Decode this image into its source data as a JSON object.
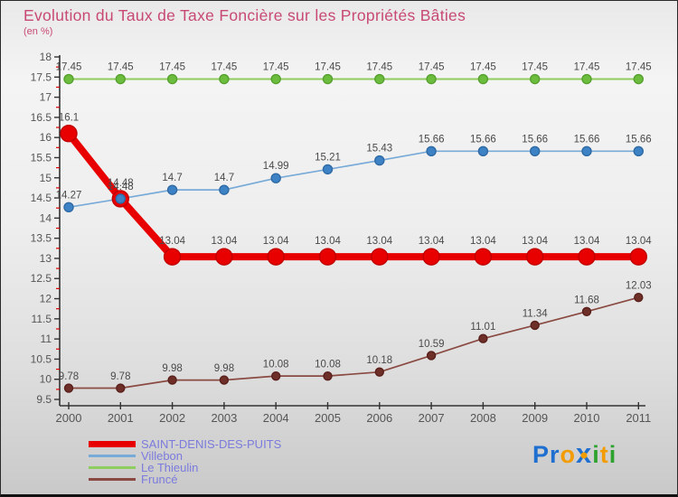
{
  "header": {
    "title": "Evolution du Taux de Taxe Foncière sur les Propriétés Bâties",
    "subtitle": "(en %)",
    "title_color": "#c84a72"
  },
  "chart_data": {
    "type": "line",
    "title": "Evolution du Taux de Taxe Foncière sur les Propriétés Bâties",
    "ylabel": "en %",
    "x": [
      2000,
      2001,
      2002,
      2003,
      2004,
      2005,
      2006,
      2007,
      2008,
      2009,
      2010,
      2011
    ],
    "series": [
      {
        "name": "SAINT-DENIS-DES-PUITS",
        "values": [
          16.1,
          14.48,
          13.04,
          13.04,
          13.04,
          13.04,
          13.04,
          13.04,
          13.04,
          13.04,
          13.04,
          13.04
        ],
        "color": "#e80000",
        "marker_color": "#e80000",
        "marker_stroke": "#c00000",
        "line_width": 8,
        "marker_radius": 9
      },
      {
        "name": "Villebon",
        "values": [
          14.27,
          14.48,
          14.7,
          14.7,
          14.99,
          15.21,
          15.43,
          15.66,
          15.66,
          15.66,
          15.66,
          15.66
        ],
        "color": "#78aad8",
        "marker_color": "#3c82c4",
        "marker_stroke": "#2f6aa5",
        "line_width": 1.7,
        "marker_radius": 5
      },
      {
        "name": "Le Thieulin",
        "values": [
          17.45,
          17.45,
          17.45,
          17.45,
          17.45,
          17.45,
          17.45,
          17.45,
          17.45,
          17.45,
          17.45,
          17.45
        ],
        "color": "#90cd60",
        "marker_color": "#6cbd3e",
        "marker_stroke": "#55a02e",
        "line_width": 2,
        "marker_radius": 5
      },
      {
        "name": "Fruncé",
        "values": [
          9.78,
          9.78,
          9.98,
          9.98,
          10.08,
          10.08,
          10.18,
          10.59,
          11.01,
          11.34,
          11.68,
          12.03
        ],
        "color": "#8a4a42",
        "marker_color": "#6e2f29",
        "marker_stroke": "#591f1a",
        "line_width": 1.7,
        "marker_radius": 4.5
      }
    ],
    "ylim": [
      9.5,
      18
    ],
    "y_major_step": 0.5,
    "y_minor_step": 0.25,
    "grid": false,
    "legend_position": "bottom-left",
    "axis_color": "#333333",
    "minor_tick_color": "#dd0000",
    "tick_label_color": "#555555",
    "data_label_color": "#4a4a4a"
  },
  "legend": {
    "text_color": "#7b7bdd"
  },
  "logo": {
    "name": "Proxiti",
    "letters": [
      {
        "ch": "P",
        "color": "#1e6fd0"
      },
      {
        "ch": "r",
        "color": "#1e6fd0"
      },
      {
        "ch": "o",
        "color": "#f39c00"
      },
      {
        "ch": "x",
        "color": "#1e6fd0"
      },
      {
        "ch": "i",
        "color": "#2ea22e"
      },
      {
        "ch": "t",
        "color": "#f39c00"
      },
      {
        "ch": "i",
        "color": "#2ea22e"
      }
    ],
    "x_dot_color": "#f39c00"
  }
}
